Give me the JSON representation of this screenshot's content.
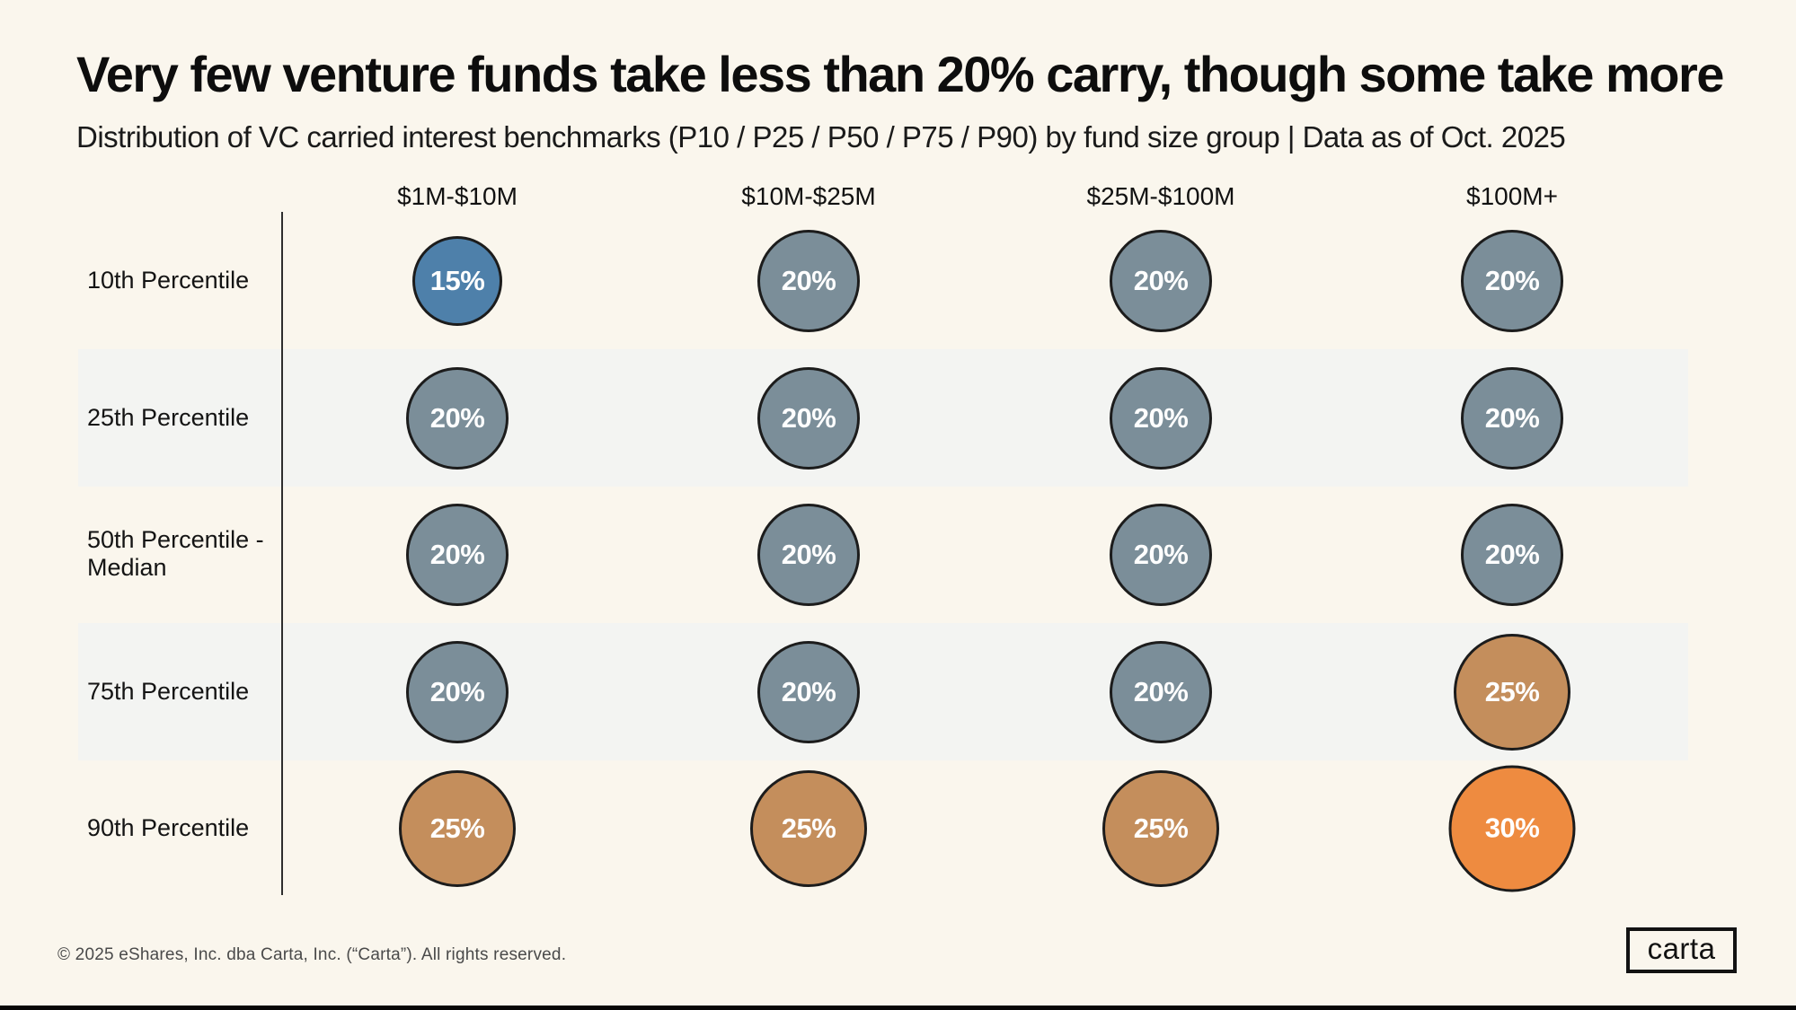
{
  "page": {
    "title": "Very few venture funds take less than 20% carry, though some take more",
    "subtitle": "Distribution of VC carried interest benchmarks (P10 / P25 / P50 / P75 / P90) by fund size group | Data as of Oct. 2025",
    "footer": "© 2025 eShares, Inc. dba Carta, Inc. (“Carta”). All rights reserved.",
    "logo_text": "carta"
  },
  "chart_data": {
    "type": "heatmap",
    "title": "Very few venture funds take less than 20% carry, though some take more",
    "subtitle": "Distribution of VC carried interest benchmarks (P10 / P25 / P50 / P75 / P90) by fund size group | Data as of Oct. 2025",
    "columns": [
      "$1M-$10M",
      "$10M-$25M",
      "$25M-$100M",
      "$100M+"
    ],
    "row_labels": [
      "10th Percentile",
      "25th Percentile",
      "50th Percentile - Median",
      "75th Percentile",
      "90th Percentile"
    ],
    "unit": "%",
    "series": [
      {
        "name": "10th Percentile",
        "values": [
          15,
          20,
          20,
          20
        ]
      },
      {
        "name": "25th Percentile",
        "values": [
          20,
          20,
          20,
          20
        ]
      },
      {
        "name": "50th Percentile - Median",
        "values": [
          20,
          20,
          20,
          20
        ]
      },
      {
        "name": "75th Percentile",
        "values": [
          20,
          20,
          20,
          25
        ]
      },
      {
        "name": "90th Percentile",
        "values": [
          25,
          25,
          25,
          30
        ]
      }
    ],
    "value_colors": {
      "15": "#4e80aa",
      "20": "#7b8e99",
      "25": "#c48e5c",
      "30": "#ee8b40"
    },
    "encoding": "circle area scales with value; color encodes value bucket",
    "legend": "none",
    "striped_row_indices": [
      1,
      3
    ],
    "colors": {
      "background": "#faf6ed",
      "row_stripe": "#f3f4f2",
      "bubble_border": "#1c1c1c",
      "text": "#0d0d0d"
    }
  }
}
